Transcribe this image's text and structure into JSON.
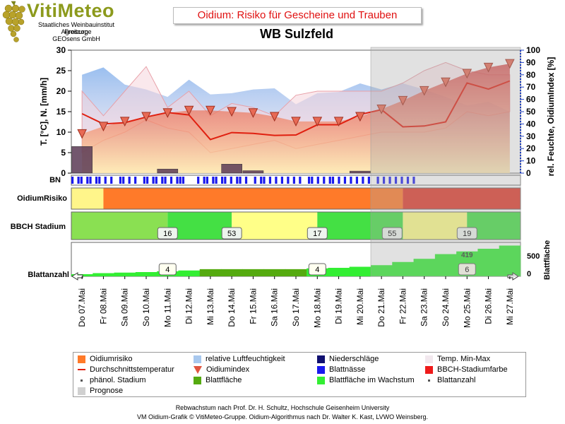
{
  "logo": {
    "title": "VitiMeteo",
    "line1": "Staatliches Weinbauinstitut Freiburg",
    "line2": "Agroscope",
    "line3": "GEOsens GmbH"
  },
  "header": {
    "title": "Oidium: Risiko für Gescheine und Trauben",
    "station": "WB Sulzfeld"
  },
  "chart_data": {
    "type": "line",
    "title": "Oidium: Risiko für Gescheine und Trauben",
    "subtitle": "WB Sulzfeld",
    "ylabel_left": "T. [°C], N. [mm/h]",
    "ylabel_right": "rel. Feuchte, OidiumIndex [%]",
    "ylim_left": [
      0,
      30
    ],
    "ylim_right": [
      0,
      100
    ],
    "yticks_left": [
      0,
      5,
      10,
      15,
      20,
      25,
      30
    ],
    "yticks_right": [
      0,
      10,
      20,
      30,
      40,
      50,
      60,
      70,
      80,
      90,
      100
    ],
    "dates": [
      "Do 07.Mai",
      "Fr 08.Mai",
      "Sa 09.Mai",
      "So 10.Mai",
      "Mo 11.Mai",
      "Di 12.Mai",
      "Mi 13.Mai",
      "Do 14.Mai",
      "Fr 15.Mai",
      "Sa 16.Mai",
      "So 17.Mai",
      "Mo 18.Mai",
      "Di 19.Mai",
      "Mi 20.Mai",
      "Do 21.Mai",
      "Fr 22.Mai",
      "Sa 23.Mai",
      "So 24.Mai",
      "Mo 25.Mai",
      "Di 26.Mai",
      "Mi 27.Mai"
    ],
    "prognose_start_index": 14,
    "series": [
      {
        "name": "Durchschnittstemperatur",
        "values": [
          14.5,
          12,
          12.3,
          13.7,
          14.8,
          14.2,
          8.2,
          9.9,
          9.7,
          9.2,
          9.3,
          11.8,
          11.8,
          14.3,
          15.5,
          11.3,
          11.5,
          12.5,
          22,
          20.5,
          22.5
        ]
      },
      {
        "name": "Oidiumindex",
        "values": [
          32,
          38,
          42,
          46,
          49,
          51,
          51,
          50,
          49,
          46,
          42,
          42,
          42,
          46,
          52,
          59,
          67,
          74,
          81,
          86,
          89
        ]
      },
      {
        "name": "relative Luftfeuchtigkeit",
        "values": [
          80,
          86,
          72,
          68,
          62,
          76,
          64,
          65,
          68,
          69,
          56,
          65,
          66,
          73,
          68,
          73,
          68,
          62,
          55,
          58,
          50
        ]
      },
      {
        "name": "Temp. Min-Max",
        "min": [
          5,
          8,
          10,
          13,
          11,
          10,
          5,
          6,
          7,
          8,
          6,
          7,
          8,
          9,
          10,
          10,
          10,
          11,
          15,
          14,
          15
        ],
        "max": [
          20,
          14,
          20,
          26,
          16,
          20,
          14,
          17,
          16,
          14,
          19,
          20,
          20,
          20,
          20,
          22,
          25,
          27,
          25,
          24,
          24
        ]
      },
      {
        "name": "Niederschläge",
        "values": [
          6.5,
          0,
          0,
          0,
          1,
          0,
          0,
          2.2,
          0.6,
          0,
          0,
          0,
          0,
          0.5,
          0,
          0,
          0,
          0,
          0,
          0,
          0
        ]
      }
    ],
    "rows": {
      "bn": "BN",
      "oidiumrisiko": "OidiumRisiko",
      "bbch": "BBCH Stadium",
      "blattanzahl": "Blattanzahl",
      "blattflaeche_axis": "Blattfläche",
      "blattflaeche_ticks": [
        "500",
        "0"
      ]
    },
    "bbch_labels": [
      {
        "day": 4,
        "value": "16"
      },
      {
        "day": 7,
        "value": "53"
      },
      {
        "day": 11,
        "value": "17"
      },
      {
        "day": 14.5,
        "value": "55"
      },
      {
        "day": 18,
        "value": "19"
      }
    ],
    "blattanzahl_labels": [
      {
        "day": 4,
        "value": "4"
      },
      {
        "day": 11,
        "value": "4"
      },
      {
        "day": 18,
        "value": "6"
      }
    ],
    "blattflaeche_value_label": "419",
    "blattflaeche": [
      40,
      60,
      70,
      80,
      95,
      110,
      135,
      135,
      135,
      135,
      135,
      150,
      160,
      180,
      210,
      270,
      330,
      419,
      470,
      520,
      580
    ]
  },
  "legend": [
    {
      "label": "Oidiumrisiko",
      "color": "#ff7a29",
      "kind": "box"
    },
    {
      "label": "relative Luftfeuchtigkeit",
      "color": "#a8c8ee",
      "kind": "box"
    },
    {
      "label": "Niederschläge",
      "color": "#101070",
      "kind": "box"
    },
    {
      "label": "Temp. Min-Max",
      "color": "#f2e8ee",
      "kind": "box"
    },
    {
      "label": "Durchschnittstemperatur",
      "color": "#e02010",
      "kind": "line"
    },
    {
      "label": "Oidiumindex",
      "color": "#e05540",
      "kind": "triangle"
    },
    {
      "label": "Blattnässe",
      "color": "#1a1aee",
      "kind": "box"
    },
    {
      "label": "BBCH-Stadiumfarbe",
      "color": "#ee1a1a",
      "kind": "box"
    },
    {
      "label": "phänol. Stadium",
      "color": "#555555",
      "kind": "dot"
    },
    {
      "label": "Blattfläche",
      "color": "#55aa10",
      "kind": "box"
    },
    {
      "label": "Blattfläche im Wachstum",
      "color": "#33ee33",
      "kind": "box"
    },
    {
      "label": "Blattanzahl",
      "color": "#555555",
      "kind": "dot"
    },
    {
      "label": "Prognose",
      "color": "#d0d0d0",
      "kind": "box"
    }
  ],
  "footer": {
    "line1": "Rebwachstum nach Prof. Dr. H. Schultz, Hochschule Geisenheim University",
    "line2": "VM Oidium-Grafik © VitiMeteo-Gruppe. Oidium-Algorithmus nach Dr. Walter K. Kast, LVWO Weinsberg."
  }
}
